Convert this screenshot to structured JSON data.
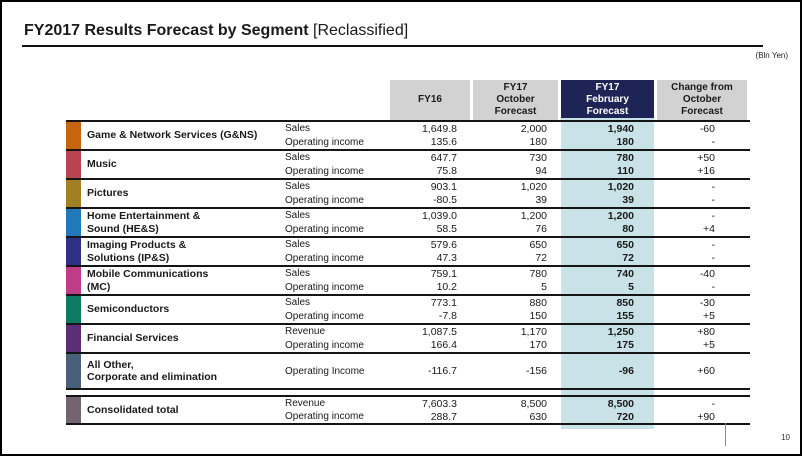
{
  "slide": {
    "title": "FY2017 Results Forecast by Segment",
    "title_tag": "[Reclassified]",
    "unit_note": "(Bln Yen)",
    "page_number": "10"
  },
  "colors": {
    "header_bg": "#D2D2D2",
    "header_highlight_bg": "#1F2456",
    "highlight_band": "#C9E2E8"
  },
  "header": {
    "col_fy16": "FY16",
    "col_oct": "FY17\nOctober\nForecast",
    "col_feb": "FY17\nFebruary\nForecast",
    "col_change": "Change from\nOctober\nForecast"
  },
  "segments": [
    {
      "name": "Game & Network Services (G&NS)",
      "color": "#C5650F",
      "items": [
        {
          "label": "Sales",
          "fy16": "1,649.8",
          "oct": "2,000",
          "feb": "1,940",
          "change": "-60"
        },
        {
          "label": "Operating income",
          "fy16": "135.6",
          "oct": "180",
          "feb": "180",
          "change": "-"
        }
      ]
    },
    {
      "name": "Music",
      "color": "#B84450",
      "items": [
        {
          "label": "Sales",
          "fy16": "647.7",
          "oct": "730",
          "feb": "780",
          "change": "+50"
        },
        {
          "label": "Operating income",
          "fy16": "75.8",
          "oct": "94",
          "feb": "110",
          "change": "+16"
        }
      ]
    },
    {
      "name": "Pictures",
      "color": "#A37F24",
      "items": [
        {
          "label": "Sales",
          "fy16": "903.1",
          "oct": "1,020",
          "feb": "1,020",
          "change": "-"
        },
        {
          "label": "Operating income",
          "fy16": "-80.5",
          "oct": "39",
          "feb": "39",
          "change": "-"
        }
      ]
    },
    {
      "name": "Home Entertainment &\nSound (HE&S)",
      "color": "#2379B7",
      "items": [
        {
          "label": "Sales",
          "fy16": "1,039.0",
          "oct": "1,200",
          "feb": "1,200",
          "change": "-"
        },
        {
          "label": "Operating income",
          "fy16": "58.5",
          "oct": "76",
          "feb": "80",
          "change": "+4"
        }
      ]
    },
    {
      "name": "Imaging Products &\nSolutions (IP&S)",
      "color": "#2E3083",
      "items": [
        {
          "label": "Sales",
          "fy16": "579.6",
          "oct": "650",
          "feb": "650",
          "change": "-"
        },
        {
          "label": "Operating income",
          "fy16": "47.3",
          "oct": "72",
          "feb": "72",
          "change": "-"
        }
      ]
    },
    {
      "name": "Mobile Communications\n(MC)",
      "color": "#C03C87",
      "items": [
        {
          "label": "Sales",
          "fy16": "759.1",
          "oct": "780",
          "feb": "740",
          "change": "-40"
        },
        {
          "label": "Operating income",
          "fy16": "10.2",
          "oct": "5",
          "feb": "5",
          "change": "-"
        }
      ]
    },
    {
      "name": "Semiconductors",
      "color": "#0E7A62",
      "items": [
        {
          "label": "Sales",
          "fy16": "773.1",
          "oct": "880",
          "feb": "850",
          "change": "-30"
        },
        {
          "label": "Operating income",
          "fy16": "-7.8",
          "oct": "150",
          "feb": "155",
          "change": "+5"
        }
      ]
    },
    {
      "name": "Financial Services",
      "color": "#5C2E77",
      "items": [
        {
          "label": "Revenue",
          "fy16": "1,087.5",
          "oct": "1,170",
          "feb": "1,250",
          "change": "+80"
        },
        {
          "label": "Operating income",
          "fy16": "166.4",
          "oct": "170",
          "feb": "175",
          "change": "+5"
        }
      ]
    },
    {
      "name": "All Other,\nCorporate and elimination",
      "color": "#486079",
      "items": [
        {
          "label": "Operating Income",
          "fy16": "-116.7",
          "oct": "-156",
          "feb": "-96",
          "change": "+60"
        }
      ]
    }
  ],
  "total": {
    "name": "Consolidated total",
    "color": "#746371",
    "items": [
      {
        "label": "Revenue",
        "fy16": "7,603.3",
        "oct": "8,500",
        "feb": "8,500",
        "change": "-"
      },
      {
        "label": "Operating income",
        "fy16": "288.7",
        "oct": "630",
        "feb": "720",
        "change": "+90"
      }
    ]
  }
}
